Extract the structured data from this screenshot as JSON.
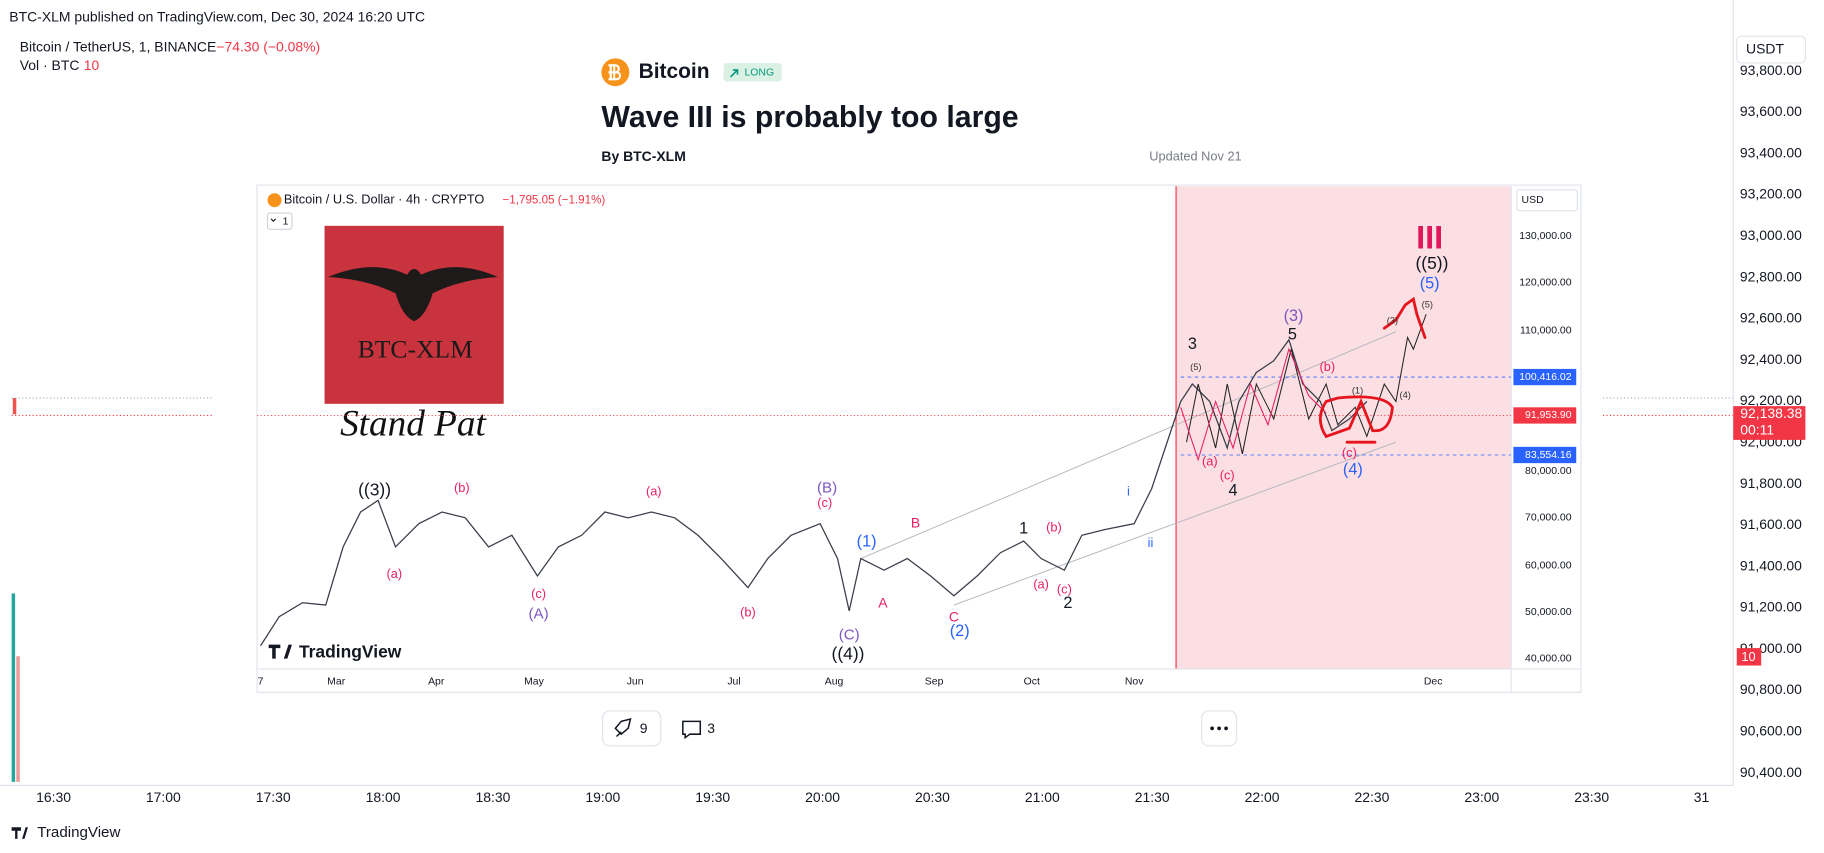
{
  "header": {
    "published": "BTC-XLM published on TradingView.com, Dec 30, 2024 16:20 UTC"
  },
  "outer_chart": {
    "symbol": "Bitcoin / TetherUS, 1, BINANCE",
    "change": "−74.30 (−0.08%)",
    "volume_label": "Vol · BTC",
    "volume_value": "10",
    "currency": "USDT",
    "price_ticks": [
      "93,800.00",
      "93,600.00",
      "93,400.00",
      "93,200.00",
      "93,000.00",
      "92,800.00",
      "92,600.00",
      "92,400.00",
      "92,200.00",
      "92,000.00",
      "91,800.00",
      "91,600.00",
      "91,400.00",
      "91,200.00",
      "91,000.00",
      "90,800.00",
      "90,600.00",
      "90,400.00"
    ],
    "time_ticks": [
      "16:30",
      "17:00",
      "17:30",
      "18:00",
      "18:30",
      "19:00",
      "19:30",
      "20:00",
      "20:30",
      "21:00",
      "21:30",
      "22:00",
      "22:30",
      "23:00",
      "23:30",
      "31"
    ],
    "last_price": "92,138.38",
    "countdown": "00:11",
    "volume_badge": "10"
  },
  "idea": {
    "coin": "Bitcoin",
    "badge": "LONG",
    "title": "Wave III is probably too large",
    "author": "By BTC-XLM",
    "updated": "Updated Nov 21",
    "boosts": "9",
    "comments": "3"
  },
  "inner_chart": {
    "symbol": "Bitcoin / U.S. Dollar · 4h · CRYPTO",
    "change": "−1,795.05 (−1.91%)",
    "interval": "1",
    "currency": "USD",
    "price_ticks": [
      "130,000.00",
      "120,000.00",
      "110,000.00",
      "80,000.00",
      "70,000.00",
      "60,000.00",
      "50,000.00",
      "40,000.00"
    ],
    "price_labels": [
      "100,416.02",
      "91,953.90",
      "83,554.16"
    ],
    "months": [
      "7",
      "Mar",
      "Apr",
      "May",
      "Jun",
      "Jul",
      "Aug",
      "Sep",
      "Oct",
      "Nov",
      "Dec"
    ],
    "logo_text": "BTC-XLM",
    "caption": "Stand Pat",
    "watermark": "TradingView",
    "waves": [
      "((3))",
      "(a)",
      "(b)",
      "(c)",
      "(A)",
      "(a)",
      "(b)",
      "(B)",
      "(c)",
      "(1)",
      "B",
      "A",
      "(C)",
      "((4))",
      "C",
      "(2)",
      "1",
      "(b)",
      "(a)",
      "(c)",
      "2",
      "i",
      "ii",
      "3",
      "(5)",
      "(3)",
      "5",
      "(b)",
      "(a)",
      "(c)",
      "4",
      "(c)",
      "(4)",
      "(1)",
      "(4)",
      "(3)",
      "(5)",
      "(5)",
      "((5))",
      "III"
    ]
  },
  "footer": {
    "brand": "TradingView"
  }
}
